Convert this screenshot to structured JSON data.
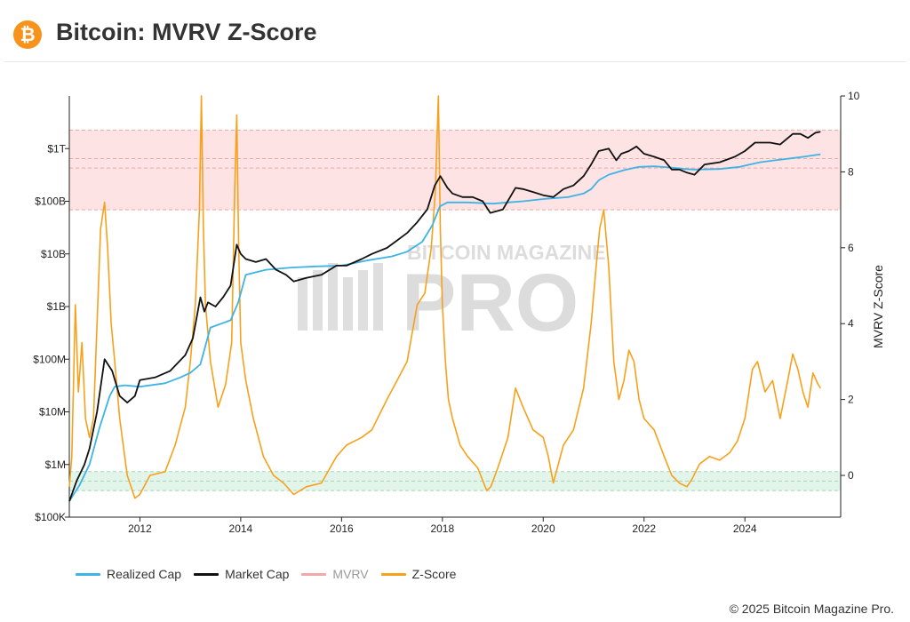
{
  "header": {
    "title": "Bitcoin: MVRV Z-Score",
    "logo_icon": "bitcoin-icon",
    "logo_glyph": "₿"
  },
  "watermark": {
    "line1": "BITCOIN MAGAZINE",
    "line2": "PRO"
  },
  "footer": {
    "copyright": "© 2025 Bitcoin Magazine Pro."
  },
  "colors": {
    "realized_cap": "#3db3e6",
    "market_cap": "#111111",
    "mvrv": "#f4a7a7",
    "zscore": "#f7a11a",
    "red_band": "#fde3e3",
    "green_band": "#e3f5ea"
  },
  "legend": [
    {
      "label": "Realized Cap",
      "series": "realized_cap",
      "muted": false
    },
    {
      "label": "Market Cap",
      "series": "market_cap",
      "muted": false
    },
    {
      "label": "MVRV",
      "series": "mvrv",
      "muted": true
    },
    {
      "label": "Z-Score",
      "series": "zscore",
      "muted": false
    }
  ],
  "chart_data": {
    "type": "line",
    "title": "Bitcoin: MVRV Z-Score",
    "x_range": [
      2010.6,
      2025.9
    ],
    "x_ticks": [
      2012,
      2014,
      2016,
      2018,
      2020,
      2022,
      2024
    ],
    "left_axis": {
      "scale": "log",
      "range": [
        100000,
        10000000000000
      ],
      "ticks": [
        {
          "value": 100000,
          "label": "$100K"
        },
        {
          "value": 1000000,
          "label": "$1M"
        },
        {
          "value": 10000000,
          "label": "$10M"
        },
        {
          "value": 100000000,
          "label": "$100M"
        },
        {
          "value": 1000000000,
          "label": "$1B"
        },
        {
          "value": 10000000000,
          "label": "$10B"
        },
        {
          "value": 100000000000,
          "label": "$100B"
        },
        {
          "value": 1000000000000,
          "label": "$1T"
        }
      ]
    },
    "right_axis": {
      "label": "MVRV Z-Score",
      "range": [
        -1.1,
        10
      ],
      "ticks": [
        0,
        2,
        4,
        6,
        8,
        10
      ]
    },
    "bands": [
      {
        "name": "overvalued",
        "from": 7.0,
        "to": 9.1,
        "color": "#fde3e3",
        "lines": [
          7.0,
          8.1,
          8.35,
          9.1
        ]
      },
      {
        "name": "undervalued",
        "from": -0.4,
        "to": 0.1,
        "color": "#e3f5ea",
        "lines": [
          -0.4,
          -0.15,
          0.1
        ]
      }
    ],
    "series": [
      {
        "name": "Realized Cap",
        "axis": "left",
        "key": "realized_cap",
        "x": [
          2010.6,
          2010.8,
          2011.0,
          2011.2,
          2011.4,
          2011.5,
          2011.7,
          2012.0,
          2012.5,
          2012.8,
          2013.0,
          2013.2,
          2013.4,
          2013.8,
          2013.95,
          2014.1,
          2014.5,
          2015.0,
          2015.5,
          2016.0,
          2016.5,
          2017.0,
          2017.3,
          2017.6,
          2017.8,
          2017.95,
          2018.1,
          2018.5,
          2019.0,
          2019.3,
          2019.6,
          2020.0,
          2020.5,
          2020.8,
          2020.95,
          2021.1,
          2021.3,
          2021.6,
          2021.9,
          2022.2,
          2022.5,
          2022.8,
          2023.0,
          2023.5,
          2023.9,
          2024.1,
          2024.3,
          2024.6,
          2024.9,
          2025.2,
          2025.5
        ],
        "y": [
          200000,
          400000,
          1000000,
          5000000,
          20000000,
          30000000,
          32000000,
          30000000,
          35000000,
          45000000,
          55000000,
          80000000,
          400000000,
          550000000,
          1200000000,
          4000000000,
          5000000000,
          5500000000,
          5800000000,
          6000000000,
          7500000000,
          9000000000,
          11000000000,
          17000000000,
          35000000000,
          80000000000,
          95000000000,
          95000000000,
          90000000000,
          95000000000,
          100000000000,
          110000000000,
          120000000000,
          140000000000,
          170000000000,
          250000000000,
          320000000000,
          390000000000,
          450000000000,
          460000000000,
          440000000000,
          410000000000,
          400000000000,
          410000000000,
          450000000000,
          500000000000,
          550000000000,
          600000000000,
          650000000000,
          710000000000,
          780000000000
        ]
      },
      {
        "name": "Market Cap",
        "axis": "left",
        "key": "market_cap",
        "x": [
          2010.6,
          2010.75,
          2010.9,
          2011.0,
          2011.15,
          2011.3,
          2011.45,
          2011.6,
          2011.75,
          2011.9,
          2012.0,
          2012.3,
          2012.6,
          2012.9,
          2013.05,
          2013.2,
          2013.28,
          2013.35,
          2013.5,
          2013.65,
          2013.8,
          2013.92,
          2014.0,
          2014.1,
          2014.3,
          2014.5,
          2014.7,
          2014.9,
          2015.05,
          2015.3,
          2015.6,
          2015.9,
          2016.1,
          2016.4,
          2016.6,
          2016.9,
          2017.1,
          2017.3,
          2017.5,
          2017.7,
          2017.85,
          2017.96,
          2018.1,
          2018.2,
          2018.4,
          2018.6,
          2018.8,
          2018.95,
          2019.2,
          2019.45,
          2019.6,
          2019.8,
          2020.0,
          2020.2,
          2020.4,
          2020.6,
          2020.8,
          2020.95,
          2021.1,
          2021.3,
          2021.45,
          2021.55,
          2021.7,
          2021.85,
          2022.0,
          2022.2,
          2022.4,
          2022.55,
          2022.7,
          2022.85,
          2023.0,
          2023.2,
          2023.5,
          2023.8,
          2024.0,
          2024.2,
          2024.5,
          2024.7,
          2024.95,
          2025.1,
          2025.25,
          2025.4,
          2025.5
        ],
        "y": [
          200000,
          500000,
          1000000,
          2000000,
          10000000,
          100000000,
          60000000,
          20000000,
          15000000,
          20000000,
          40000000,
          45000000,
          60000000,
          120000000,
          250000000,
          1500000000,
          800000000,
          1200000000,
          1000000000,
          1500000000,
          2500000000,
          15000000000,
          10000000000,
          8000000000,
          7000000000,
          8000000000,
          5000000000,
          4000000000,
          3000000000,
          3500000000,
          4000000000,
          6000000000,
          6000000000,
          8000000000,
          10000000000,
          13000000000,
          18000000000,
          25000000000,
          40000000000,
          70000000000,
          200000000000,
          300000000000,
          180000000000,
          140000000000,
          120000000000,
          120000000000,
          100000000000,
          60000000000,
          70000000000,
          180000000000,
          170000000000,
          150000000000,
          130000000000,
          120000000000,
          170000000000,
          200000000000,
          300000000000,
          500000000000,
          900000000000,
          1000000000000,
          600000000000,
          800000000000,
          900000000000,
          1100000000000,
          800000000000,
          700000000000,
          600000000000,
          400000000000,
          400000000000,
          350000000000,
          320000000000,
          500000000000,
          550000000000,
          700000000000,
          900000000000,
          1300000000000,
          1300000000000,
          1200000000000,
          1900000000000,
          1900000000000,
          1600000000000,
          2000000000000,
          2100000000000
        ]
      },
      {
        "name": "Z-Score",
        "axis": "right",
        "key": "zscore",
        "x": [
          2010.6,
          2010.65,
          2010.72,
          2010.78,
          2010.85,
          2010.92,
          2011.0,
          2011.08,
          2011.15,
          2011.22,
          2011.3,
          2011.36,
          2011.43,
          2011.5,
          2011.6,
          2011.75,
          2011.9,
          2012.0,
          2012.2,
          2012.5,
          2012.7,
          2012.9,
          2013.0,
          2013.1,
          2013.18,
          2013.22,
          2013.26,
          2013.3,
          2013.4,
          2013.55,
          2013.7,
          2013.82,
          2013.88,
          2013.92,
          2013.96,
          2014.0,
          2014.1,
          2014.25,
          2014.45,
          2014.65,
          2014.85,
          2015.05,
          2015.3,
          2015.6,
          2015.9,
          2016.1,
          2016.4,
          2016.6,
          2016.9,
          2017.1,
          2017.3,
          2017.5,
          2017.65,
          2017.78,
          2017.86,
          2017.92,
          2017.96,
          2018.0,
          2018.06,
          2018.12,
          2018.2,
          2018.35,
          2018.5,
          2018.7,
          2018.88,
          2018.96,
          2019.1,
          2019.3,
          2019.45,
          2019.6,
          2019.8,
          2020.0,
          2020.1,
          2020.2,
          2020.4,
          2020.6,
          2020.8,
          2020.95,
          2021.05,
          2021.12,
          2021.2,
          2021.3,
          2021.4,
          2021.5,
          2021.6,
          2021.7,
          2021.8,
          2021.9,
          2022.0,
          2022.2,
          2022.4,
          2022.55,
          2022.7,
          2022.85,
          2022.95,
          2023.1,
          2023.3,
          2023.5,
          2023.7,
          2023.85,
          2024.0,
          2024.15,
          2024.25,
          2024.4,
          2024.55,
          2024.7,
          2024.85,
          2024.95,
          2025.05,
          2025.15,
          2025.25,
          2025.35,
          2025.45,
          2025.5
        ],
        "y": [
          -0.3,
          0.5,
          4.5,
          2.2,
          3.5,
          1.5,
          1.0,
          1.5,
          4.0,
          6.5,
          7.2,
          6.0,
          4.0,
          3.0,
          1.5,
          0.0,
          -0.6,
          -0.5,
          0.0,
          0.1,
          0.8,
          1.8,
          3.0,
          4.5,
          7.0,
          10.0,
          6.5,
          4.5,
          3.0,
          1.8,
          2.4,
          3.5,
          7.5,
          9.5,
          6.0,
          3.5,
          2.5,
          1.5,
          0.5,
          0.0,
          -0.2,
          -0.5,
          -0.3,
          -0.2,
          0.5,
          0.8,
          1.0,
          1.2,
          2.0,
          2.5,
          3.0,
          4.5,
          4.8,
          6.0,
          7.5,
          10.0,
          6.5,
          4.5,
          3.0,
          2.0,
          1.5,
          0.8,
          0.5,
          0.2,
          -0.4,
          -0.3,
          0.2,
          1.0,
          2.3,
          1.8,
          1.2,
          1.0,
          0.5,
          -0.2,
          0.8,
          1.2,
          2.3,
          4.0,
          5.5,
          6.5,
          7.0,
          5.5,
          3.0,
          2.0,
          2.5,
          3.3,
          3.0,
          2.0,
          1.5,
          1.2,
          0.5,
          0.0,
          -0.2,
          -0.3,
          -0.1,
          0.3,
          0.5,
          0.4,
          0.6,
          0.9,
          1.5,
          2.8,
          3.0,
          2.2,
          2.5,
          1.5,
          2.5,
          3.2,
          2.8,
          2.2,
          1.8,
          2.7,
          2.4,
          2.3
        ]
      }
    ]
  }
}
